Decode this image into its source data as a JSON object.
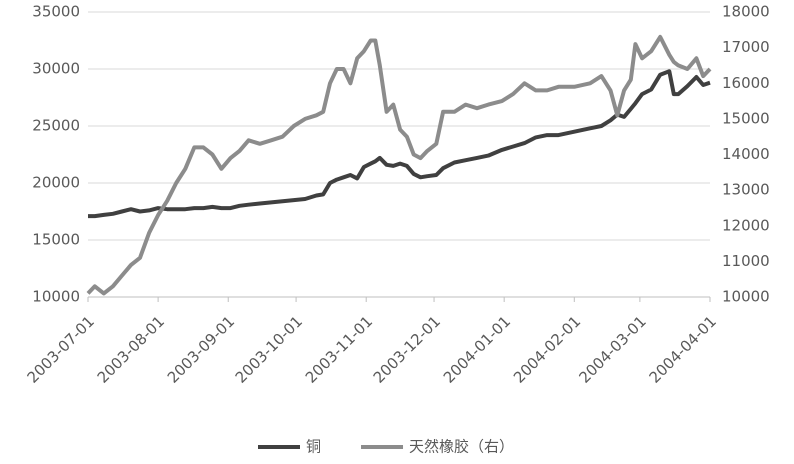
{
  "chart_data": {
    "type": "line",
    "x": [
      "2003-07-01",
      "2003-07-04",
      "2003-07-08",
      "2003-07-12",
      "2003-07-16",
      "2003-07-20",
      "2003-07-24",
      "2003-07-28",
      "2003-08-01",
      "2003-08-05",
      "2003-08-09",
      "2003-08-13",
      "2003-08-17",
      "2003-08-21",
      "2003-08-25",
      "2003-08-29",
      "2003-09-02",
      "2003-09-06",
      "2003-09-10",
      "2003-09-15",
      "2003-09-20",
      "2003-09-25",
      "2003-09-30",
      "2003-10-05",
      "2003-10-10",
      "2003-10-13",
      "2003-10-16",
      "2003-10-19",
      "2003-10-22",
      "2003-10-25",
      "2003-10-28",
      "2003-10-31",
      "2003-11-03",
      "2003-11-05",
      "2003-11-07",
      "2003-11-10",
      "2003-11-13",
      "2003-11-16",
      "2003-11-19",
      "2003-11-22",
      "2003-11-25",
      "2003-11-28",
      "2003-12-02",
      "2003-12-05",
      "2003-12-10",
      "2003-12-15",
      "2003-12-20",
      "2003-12-25",
      "2003-12-31",
      "2004-01-05",
      "2004-01-10",
      "2004-01-15",
      "2004-01-20",
      "2004-01-25",
      "2004-02-01",
      "2004-02-08",
      "2004-02-13",
      "2004-02-17",
      "2004-02-20",
      "2004-02-23",
      "2004-02-26",
      "2004-02-28",
      "2004-03-02",
      "2004-03-06",
      "2004-03-10",
      "2004-03-14",
      "2004-03-16",
      "2004-03-18",
      "2004-03-22",
      "2004-03-26",
      "2004-03-29",
      "2004-04-01"
    ],
    "series": [
      {
        "name": "铜",
        "color": "#404040",
        "axis": "y",
        "values": [
          17100,
          17100,
          17200,
          17300,
          17500,
          17700,
          17500,
          17600,
          17800,
          17700,
          17700,
          17700,
          17800,
          17800,
          17900,
          17800,
          17800,
          18000,
          18100,
          18200,
          18300,
          18400,
          18500,
          18600,
          18900,
          19000,
          20000,
          20300,
          20500,
          20700,
          20400,
          21400,
          21700,
          21900,
          22200,
          21600,
          21500,
          21700,
          21500,
          20800,
          20500,
          20600,
          20700,
          21300,
          21800,
          22000,
          22200,
          22400,
          22900,
          23200,
          23500,
          24000,
          24200,
          24200,
          24500,
          24800,
          25000,
          25500,
          26000,
          25800,
          26500,
          27000,
          27800,
          28200,
          29500,
          29800,
          27800,
          27800,
          28500,
          29300,
          28600,
          28800
        ]
      },
      {
        "name": "天然橡胶（右）",
        "color": "#8c8c8c",
        "axis": "y2",
        "values": [
          10100,
          10300,
          10100,
          10300,
          10600,
          10900,
          11100,
          11800,
          12300,
          12700,
          13200,
          13600,
          14200,
          14200,
          14000,
          13600,
          13900,
          14100,
          14400,
          14300,
          14400,
          14500,
          14800,
          15000,
          15100,
          15200,
          16000,
          16400,
          16400,
          16000,
          16700,
          16900,
          17200,
          17200,
          16500,
          15200,
          15400,
          14700,
          14500,
          14000,
          13900,
          14100,
          14300,
          15200,
          15200,
          15400,
          15300,
          15400,
          15500,
          15700,
          16000,
          15800,
          15800,
          15900,
          15900,
          16000,
          16200,
          15800,
          15100,
          15800,
          16100,
          17100,
          16700,
          16900,
          17300,
          16800,
          16600,
          16500,
          16400,
          16700,
          16200,
          16400
        ]
      }
    ],
    "xlim": [
      "2003-07-01",
      "2004-04-01"
    ],
    "xticks": [
      "2003-07-01",
      "2003-08-01",
      "2003-09-01",
      "2003-10-01",
      "2003-11-01",
      "2003-12-01",
      "2004-01-01",
      "2004-02-01",
      "2004-03-01",
      "2004-04-01"
    ],
    "ylim": [
      10000,
      35000
    ],
    "yticks": [
      10000,
      15000,
      20000,
      25000,
      30000,
      35000
    ],
    "y2lim": [
      10000,
      18000
    ],
    "y2ticks": [
      10000,
      11000,
      12000,
      13000,
      14000,
      15000,
      16000,
      17000,
      18000
    ],
    "grid": true,
    "legend": "bottom"
  }
}
